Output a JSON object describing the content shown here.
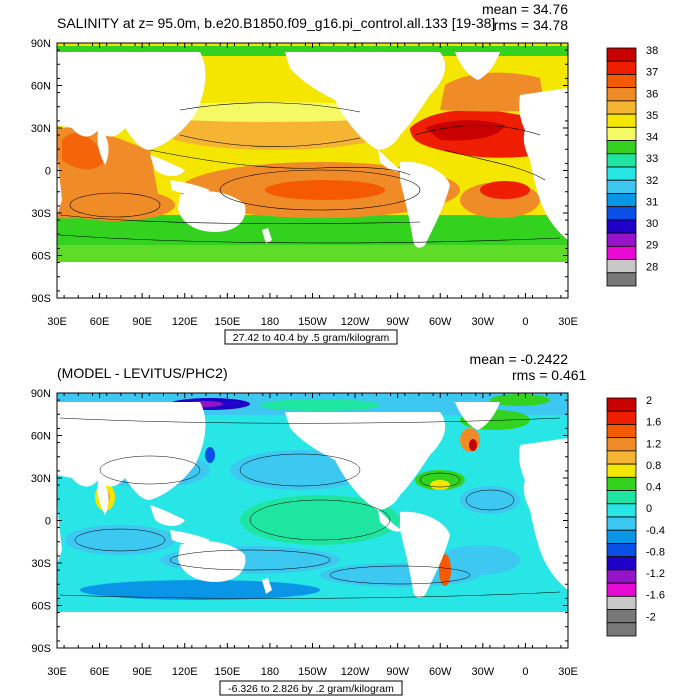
{
  "top": {
    "title": "SALINITY at z=  95.0m, b.e20.B1850.f09_g16.pi_control.all.133 [19-38]",
    "mean": "mean = 34.76",
    "rms": "rms = 34.78",
    "contour_info": "27.42 to 40.4 by .5 gram/kilogram",
    "colorbar_labels": [
      "38",
      "37",
      "36",
      "35",
      "34",
      "33",
      "32",
      "31",
      "30",
      "29",
      "28"
    ],
    "colorbar_colors": [
      "#c80000",
      "#f01e00",
      "#f55a00",
      "#f08c28",
      "#f5b432",
      "#f5e600",
      "#f5fa64",
      "#32d21e",
      "#1ee6a0",
      "#28e6e6",
      "#3cc8f0",
      "#0a96e6",
      "#0a50e6",
      "#1e00c8",
      "#9614c8",
      "#e60ad2",
      "#c8c8c8",
      "#787878"
    ]
  },
  "bottom": {
    "title": "(MODEL - LEVITUS/PHC2)",
    "mean": "mean = -0.2422",
    "rms": "rms = 0.461",
    "contour_info": "-6.326 to 2.826 by .2 gram/kilogram",
    "colorbar_labels": [
      "2",
      "1.6",
      "1.2",
      "0.8",
      "0.4",
      "0",
      "-0.4",
      "-0.8",
      "-1.2",
      "-1.6",
      "-2"
    ],
    "colorbar_colors": [
      "#c80000",
      "#f01e00",
      "#f55a00",
      "#f08c28",
      "#f5b432",
      "#f5e600",
      "#32d21e",
      "#1ee6a0",
      "#28e6e6",
      "#3cc8f0",
      "#0a96e6",
      "#0a50e6",
      "#1e00c8",
      "#9614c8",
      "#e60ad2",
      "#c8c8c8",
      "#787878",
      "#787878"
    ]
  },
  "lat_labels": [
    "90N",
    "60N",
    "30N",
    "0",
    "30S",
    "60S",
    "90S"
  ],
  "lon_labels": [
    "30E",
    "60E",
    "90E",
    "120E",
    "150E",
    "180",
    "150W",
    "120W",
    "90W",
    "60W",
    "30W",
    "0",
    "30E"
  ]
}
